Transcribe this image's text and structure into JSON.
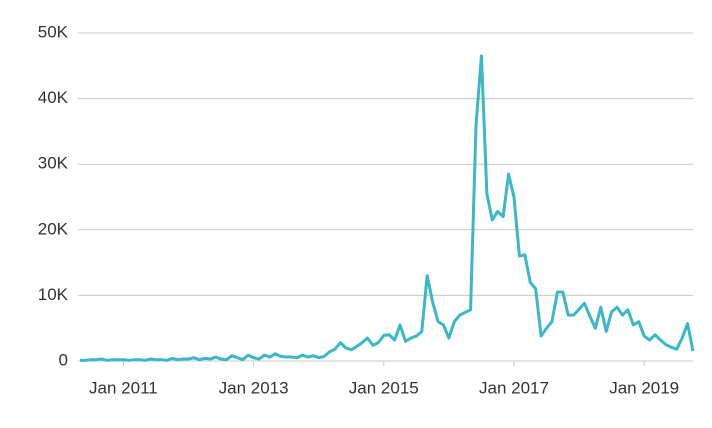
{
  "chart_data": {
    "type": "line",
    "x": [
      "2010-05",
      "2010-06",
      "2010-07",
      "2010-08",
      "2010-09",
      "2010-10",
      "2010-11",
      "2010-12",
      "2011-01",
      "2011-02",
      "2011-03",
      "2011-04",
      "2011-05",
      "2011-06",
      "2011-07",
      "2011-08",
      "2011-09",
      "2011-10",
      "2011-11",
      "2011-12",
      "2012-01",
      "2012-02",
      "2012-03",
      "2012-04",
      "2012-05",
      "2012-06",
      "2012-07",
      "2012-08",
      "2012-09",
      "2012-10",
      "2012-11",
      "2012-12",
      "2013-01",
      "2013-02",
      "2013-03",
      "2013-04",
      "2013-05",
      "2013-06",
      "2013-07",
      "2013-08",
      "2013-09",
      "2013-10",
      "2013-11",
      "2013-12",
      "2014-01",
      "2014-02",
      "2014-03",
      "2014-04",
      "2014-05",
      "2014-06",
      "2014-07",
      "2014-08",
      "2014-09",
      "2014-10",
      "2014-11",
      "2014-12",
      "2015-01",
      "2015-02",
      "2015-03",
      "2015-04",
      "2015-05",
      "2015-06",
      "2015-07",
      "2015-08",
      "2015-09",
      "2015-10",
      "2015-11",
      "2015-12",
      "2016-01",
      "2016-02",
      "2016-03",
      "2016-04",
      "2016-05",
      "2016-06",
      "2016-07",
      "2016-08",
      "2016-09",
      "2016-10",
      "2016-11",
      "2016-12",
      "2017-01",
      "2017-02",
      "2017-03",
      "2017-04",
      "2017-05",
      "2017-06",
      "2017-07",
      "2017-08",
      "2017-09",
      "2017-10",
      "2017-11",
      "2017-12",
      "2018-01",
      "2018-02",
      "2018-03",
      "2018-04",
      "2018-05",
      "2018-06",
      "2018-07",
      "2018-08",
      "2018-09",
      "2018-10",
      "2018-11",
      "2018-12",
      "2019-01",
      "2019-02",
      "2019-03",
      "2019-04",
      "2019-05",
      "2019-06",
      "2019-07",
      "2019-08",
      "2019-09",
      "2019-10"
    ],
    "series": [
      {
        "color": "#3ab7c8",
        "values": [
          100,
          100,
          200,
          200,
          300,
          100,
          200,
          200,
          200,
          100,
          200,
          200,
          100,
          300,
          200,
          200,
          100,
          400,
          200,
          300,
          300,
          500,
          200,
          400,
          300,
          600,
          300,
          200,
          800,
          500,
          200,
          900,
          500,
          300,
          900,
          600,
          1100,
          700,
          600,
          600,
          500,
          900,
          600,
          800,
          500,
          700,
          1400,
          1800,
          2800,
          2000,
          1700,
          2200,
          2800,
          3500,
          2400,
          2800,
          3900,
          4000,
          3200,
          5500,
          3000,
          3500,
          3800,
          4500,
          13000,
          9000,
          6000,
          5500,
          3500,
          6000,
          7000,
          7400,
          7800,
          36000,
          46500,
          25500,
          21500,
          22800,
          22000,
          28500,
          25000,
          16000,
          16200,
          12000,
          11000,
          3800,
          5000,
          6000,
          10500,
          10500,
          7000,
          7000,
          7900,
          8800,
          6800,
          5000,
          8200,
          4500,
          7500,
          8200,
          7000,
          7800,
          5500,
          6000,
          3800,
          3200,
          4000,
          3200,
          2500,
          2100,
          1800,
          3500,
          5700,
          1500
        ]
      }
    ],
    "xlim": [
      "2010-05",
      "2019-10"
    ],
    "xticks": [
      {
        "value": "2011-01",
        "label": "Jan 2011"
      },
      {
        "value": "2013-01",
        "label": "Jan 2013"
      },
      {
        "value": "2015-01",
        "label": "Jan 2015"
      },
      {
        "value": "2017-01",
        "label": "Jan 2017"
      },
      {
        "value": "2019-01",
        "label": "Jan 2019"
      }
    ],
    "ylim": [
      0,
      50000
    ],
    "yticks": [
      0,
      {
        "value": 10000,
        "label": "10K"
      },
      {
        "value": 20000,
        "label": "20K"
      },
      {
        "value": 30000,
        "label": "30K"
      },
      {
        "value": 40000,
        "label": "40K"
      },
      {
        "value": 50000,
        "label": "50K"
      }
    ],
    "grid": true
  }
}
